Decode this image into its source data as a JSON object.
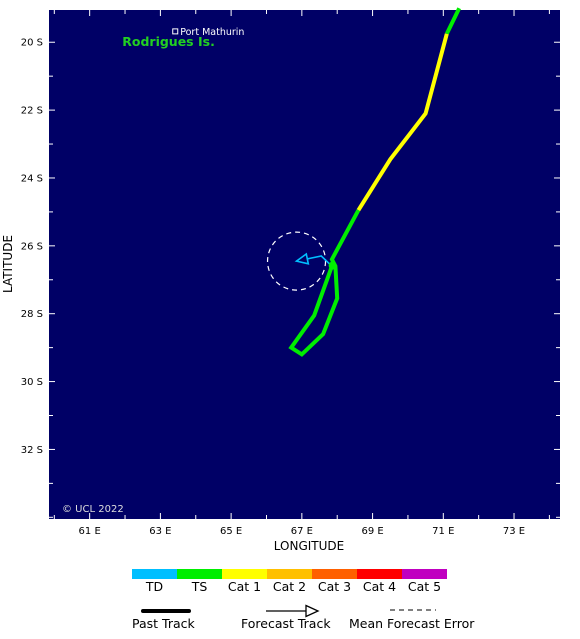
{
  "map": {
    "xlabel": "LONGITUDE",
    "ylabel": "LATITUDE",
    "lon_ticks": [
      {
        "value": 61,
        "label": "61 E"
      },
      {
        "value": 63,
        "label": "63 E"
      },
      {
        "value": 65,
        "label": "65 E"
      },
      {
        "value": 67,
        "label": "67 E"
      },
      {
        "value": 69,
        "label": "69 E"
      },
      {
        "value": 71,
        "label": "71 E"
      },
      {
        "value": 73,
        "label": "73 E"
      }
    ],
    "lat_ticks": [
      {
        "value": -20,
        "label": "20 S"
      },
      {
        "value": -22,
        "label": "22 S"
      },
      {
        "value": -24,
        "label": "24 S"
      },
      {
        "value": -26,
        "label": "26 S"
      },
      {
        "value": -28,
        "label": "28 S"
      },
      {
        "value": -30,
        "label": "30 S"
      },
      {
        "value": -32,
        "label": "32 S"
      }
    ],
    "lon_range": [
      59.85,
      74.3
    ],
    "lat_range": [
      -19.05,
      -34.05
    ],
    "ocean_color": "#000066",
    "copyright": "© UCL 2022",
    "places": [
      {
        "name": "Port Mathurin",
        "lon": 63.42,
        "lat": -19.68,
        "marker": "square-icon"
      }
    ],
    "islands": [
      {
        "name": "Rodrigues Is.",
        "lon": 63.4,
        "lat": -20.0
      }
    ]
  },
  "track": {
    "past_segments": [
      {
        "category": "TS",
        "points": [
          [
            71.45,
            -19.0
          ],
          [
            71.1,
            -19.75
          ]
        ]
      },
      {
        "category": "Cat 1",
        "points": [
          [
            71.1,
            -19.75
          ],
          [
            70.5,
            -22.1
          ],
          [
            69.5,
            -23.45
          ],
          [
            68.6,
            -24.95
          ]
        ]
      },
      {
        "category": "TS",
        "points": [
          [
            68.6,
            -24.95
          ],
          [
            67.85,
            -26.4
          ],
          [
            67.95,
            -26.6
          ],
          [
            68.0,
            -27.55
          ],
          [
            67.6,
            -28.6
          ],
          [
            67.0,
            -29.2
          ],
          [
            66.7,
            -29.0
          ],
          [
            67.35,
            -28.05
          ],
          [
            67.85,
            -26.6
          ]
        ]
      }
    ],
    "forecast": {
      "category": "TD",
      "points": [
        [
          67.85,
          -26.6
        ],
        [
          67.55,
          -26.3
        ],
        [
          66.85,
          -26.45
        ]
      ]
    },
    "current_position": {
      "lon": 67.87,
      "lat": -26.58
    },
    "error_circle": {
      "lon": 66.85,
      "lat": -26.45,
      "radius_deg": 0.82
    }
  },
  "legend": {
    "categories": [
      {
        "label": "TD",
        "color": "#00bfff"
      },
      {
        "label": "TS",
        "color": "#00ee00"
      },
      {
        "label": "Cat 1",
        "color": "#ffff00"
      },
      {
        "label": "Cat 2",
        "color": "#ffc000"
      },
      {
        "label": "Cat 3",
        "color": "#ff6000"
      },
      {
        "label": "Cat 4",
        "color": "#ff0000"
      },
      {
        "label": "Cat 5",
        "color": "#c000c0"
      }
    ],
    "past_track_label": "Past Track",
    "forecast_track_label": "Forecast Track",
    "mean_error_label": "Mean Forecast Error"
  }
}
